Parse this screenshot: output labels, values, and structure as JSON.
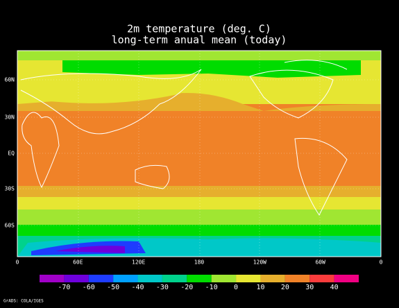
{
  "title": [
    "2m temperature (deg. C)",
    "long-term anual mean (today)"
  ],
  "lat_labels": [
    "60N",
    "30N",
    "EQ",
    "30S",
    "60S"
  ],
  "lon_labels": [
    "0",
    "60E",
    "120E",
    "180",
    "120W",
    "60W",
    "0"
  ],
  "colorbar": {
    "labels": [
      -70,
      -60,
      -50,
      -40,
      -30,
      -20,
      -10,
      0,
      10,
      20,
      30,
      40
    ],
    "colors": [
      "#a000c8",
      "#6e00dc",
      "#1e3cff",
      "#00a0ff",
      "#00c8c8",
      "#00d28c",
      "#00dc00",
      "#a0e632",
      "#e6e632",
      "#e6af2d",
      "#f08228",
      "#fa3c3c",
      "#f00082"
    ]
  },
  "credit": "GrADS: COLA/IGES"
}
